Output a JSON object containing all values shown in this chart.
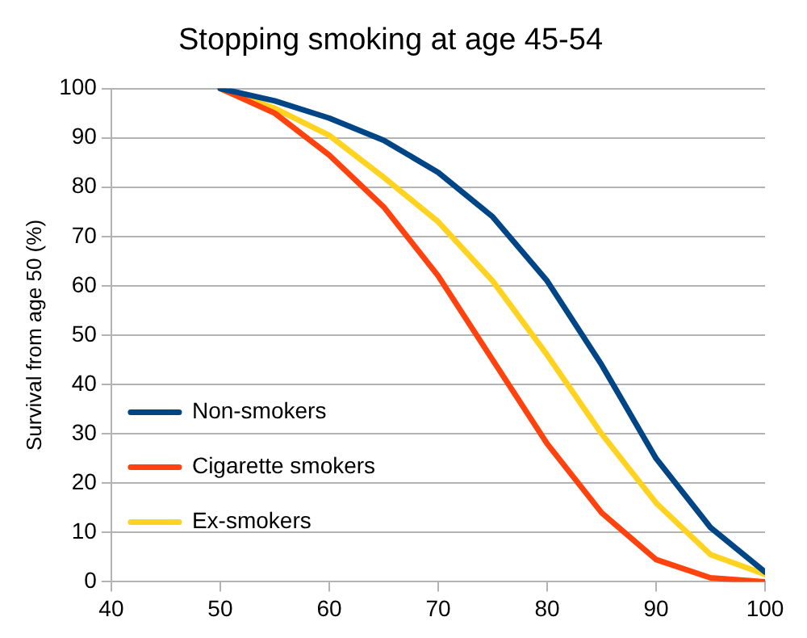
{
  "chart_data": {
    "type": "line",
    "title": "Stopping smoking at age 45-54",
    "ylabel": "Survival from age 50 (%)",
    "x": [
      50,
      55,
      60,
      65,
      70,
      75,
      80,
      85,
      90,
      95,
      100
    ],
    "series": [
      {
        "name": "Non-smokers",
        "color": "#004586",
        "values": [
          100,
          97.5,
          94,
          89.5,
          83,
          74,
          61,
          44,
          25,
          11,
          2
        ]
      },
      {
        "name": "Cigarette smokers",
        "color": "#ff420e",
        "values": [
          100,
          95,
          86.5,
          76,
          62,
          45,
          28,
          14,
          4.5,
          0.8,
          0
        ]
      },
      {
        "name": "Ex-smokers",
        "color": "#ffd320",
        "values": [
          100,
          96,
          90.5,
          82,
          73,
          61,
          46,
          30,
          16,
          5.5,
          1.5
        ]
      }
    ],
    "xlim": [
      40,
      100
    ],
    "xticks": [
      40,
      50,
      60,
      70,
      80,
      90,
      100
    ],
    "ylim": [
      0,
      100
    ],
    "yticks": [
      0,
      10,
      20,
      30,
      40,
      50,
      60,
      70,
      80,
      90,
      100
    ],
    "grid": "y",
    "legend": "bottom left",
    "marker": "none",
    "line_style": "solid"
  }
}
